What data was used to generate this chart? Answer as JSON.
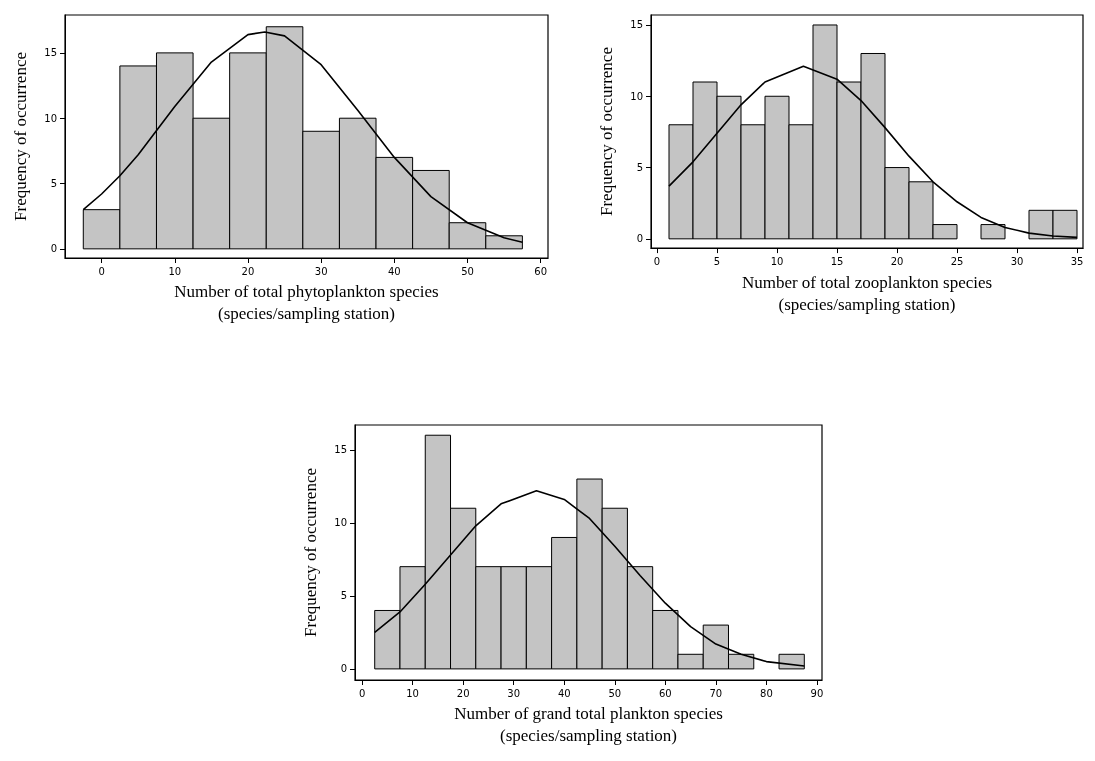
{
  "chart_data": [
    {
      "type": "histogram",
      "xlabel": "Number of total phytoplankton species\n(species/sampling station)",
      "ylabel": "Frequency of occurrence",
      "bins": [
        -2.5,
        2.5,
        7.5,
        12.5,
        17.5,
        22.5,
        27.5,
        32.5,
        37.5,
        42.5,
        47.5,
        52.5,
        57.5
      ],
      "values": [
        3,
        14,
        15,
        10,
        15,
        17,
        9,
        10,
        7,
        6,
        2,
        1
      ],
      "color": "#c4c4c4",
      "xlim": [
        -5,
        61
      ],
      "ylim": [
        -0.7,
        17.9
      ],
      "xticks": [
        0,
        10,
        20,
        30,
        40,
        50,
        60
      ],
      "yticks": [
        0,
        5,
        10,
        15
      ],
      "grid": false,
      "series": [
        {
          "type": "line",
          "color": "#000000",
          "x": [
            -2.5,
            0,
            2.5,
            5,
            10,
            15,
            20,
            22.3,
            25,
            30,
            35,
            40,
            45,
            50,
            55,
            57.5
          ],
          "values": [
            3,
            4.2,
            5.6,
            7.2,
            10.9,
            14.3,
            16.4,
            16.6,
            16.3,
            14.1,
            10.6,
            7,
            4,
            2,
            0.85,
            0.5
          ]
        }
      ]
    },
    {
      "type": "histogram",
      "xlabel": "Number of total zooplankton species\n(species/sampling station)",
      "ylabel": "Frequency of occurrence",
      "bins": [
        1,
        3,
        5,
        7,
        9,
        11,
        13,
        15,
        17,
        19,
        21,
        23,
        25,
        27,
        29,
        31,
        33,
        35
      ],
      "values": [
        8,
        11,
        10,
        8,
        10,
        8,
        15,
        11,
        13,
        5,
        4,
        1,
        0,
        1,
        0,
        2,
        2
      ],
      "color": "#c4c4c4",
      "xlim": [
        -0.5,
        35.5
      ],
      "ylim": [
        -0.65,
        15.7
      ],
      "xticks": [
        0,
        5,
        10,
        15,
        20,
        25,
        30,
        35
      ],
      "yticks": [
        0,
        5,
        10,
        15
      ],
      "grid": false,
      "series": [
        {
          "type": "line",
          "color": "#000000",
          "x": [
            1,
            3,
            5,
            7,
            9,
            12.2,
            15,
            17,
            19,
            21,
            23,
            25,
            27,
            29,
            31,
            33,
            35
          ],
          "values": [
            3.7,
            5.4,
            7.4,
            9.4,
            11,
            12.1,
            11.2,
            9.7,
            7.8,
            5.8,
            4,
            2.6,
            1.5,
            0.8,
            0.4,
            0.2,
            0.1
          ]
        }
      ]
    },
    {
      "type": "histogram",
      "xlabel": "Number of grand total plankton species\n(species/sampling station)",
      "ylabel": "Frequency of occurrence",
      "bins": [
        2.5,
        7.5,
        12.5,
        17.5,
        22.5,
        27.5,
        32.5,
        37.5,
        42.5,
        47.5,
        52.5,
        57.5,
        62.5,
        67.5,
        72.5,
        77.5,
        82.5,
        87.5
      ],
      "values": [
        4,
        7,
        16,
        11,
        7,
        7,
        7,
        9,
        13,
        11,
        7,
        4,
        1,
        3,
        1,
        0,
        1
      ],
      "color": "#c4c4c4",
      "xlim": [
        -1.4,
        91
      ],
      "ylim": [
        -0.76,
        16.7
      ],
      "xticks": [
        0,
        10,
        20,
        30,
        40,
        50,
        60,
        70,
        80,
        90
      ],
      "yticks": [
        0,
        5,
        10,
        15
      ],
      "grid": false,
      "series": [
        {
          "type": "line",
          "color": "#000000",
          "x": [
            2.5,
            7.5,
            12.5,
            17.5,
            22.5,
            27.5,
            34.5,
            40,
            45,
            50,
            55,
            60,
            65,
            70,
            75,
            80,
            87.5
          ],
          "values": [
            2.5,
            3.9,
            5.8,
            7.8,
            9.8,
            11.3,
            12.2,
            11.6,
            10.3,
            8.4,
            6.4,
            4.5,
            2.9,
            1.7,
            1,
            0.5,
            0.2
          ]
        }
      ]
    }
  ]
}
